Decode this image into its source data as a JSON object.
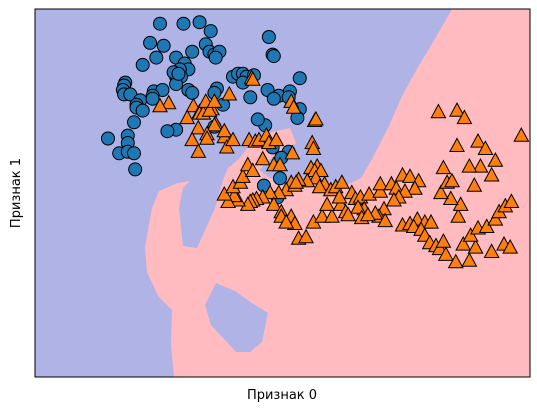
{
  "chart_data": {
    "type": "scatter",
    "title": "",
    "xlabel": "Признак 0",
    "ylabel": "Признак 1",
    "xlim": [
      -1.5,
      2.5
    ],
    "ylim": [
      -1.0,
      1.5
    ],
    "xticks_visible": false,
    "yticks_visible": false,
    "grid": false,
    "legend": "none",
    "colors": {
      "class0_marker": "#1f77b4",
      "class1_marker": "#ff7f0e",
      "class0_region": "#b0b3e6",
      "class1_region": "#ffbbc0",
      "marker_edge": "#000000"
    },
    "series": [
      {
        "marker": "circle",
        "points": [
          [
            -0.49,
            1.4
          ],
          [
            -0.3,
            1.4
          ],
          [
            -0.17,
            1.41
          ],
          [
            -0.08,
            1.35
          ],
          [
            -0.23,
            1.21
          ],
          [
            -0.12,
            1.26
          ],
          [
            -0.57,
            1.27
          ],
          [
            -0.46,
            1.25
          ],
          [
            -0.52,
            1.17
          ],
          [
            -0.36,
            1.17
          ],
          [
            -0.29,
            1.13
          ],
          [
            -0.09,
            1.21
          ],
          [
            -0.05,
            1.19
          ],
          [
            -0.01,
            1.21
          ],
          [
            -0.04,
            1.17
          ],
          [
            -0.63,
            1.12
          ],
          [
            -0.26,
            1.09
          ],
          [
            -0.33,
            1.09
          ],
          [
            -0.32,
            1.04
          ],
          [
            -0.36,
            1.04
          ],
          [
            -0.36,
            0.99
          ],
          [
            -0.38,
            1.07
          ],
          [
            -0.34,
            1.06
          ],
          [
            -0.77,
            1.0
          ],
          [
            -0.78,
            0.98
          ],
          [
            -0.79,
            0.95
          ],
          [
            -0.78,
            0.92
          ],
          [
            -0.73,
            0.92
          ],
          [
            -0.54,
            0.94
          ],
          [
            -0.47,
            0.95
          ],
          [
            -0.65,
            0.88
          ],
          [
            -0.68,
            0.85
          ],
          [
            -0.68,
            0.83
          ],
          [
            -0.55,
            0.91
          ],
          [
            -0.55,
            0.89
          ],
          [
            -0.26,
            0.95
          ],
          [
            -0.23,
            0.93
          ],
          [
            -0.03,
            0.96
          ],
          [
            -0.05,
            0.93
          ],
          [
            0.1,
            1.04
          ],
          [
            0.14,
            1.06
          ],
          [
            0.18,
            1.06
          ],
          [
            0.21,
            1.04
          ],
          [
            0.18,
            1.0
          ],
          [
            0.27,
            1.05
          ],
          [
            0.39,
            1.31
          ],
          [
            0.42,
            1.19
          ],
          [
            0.43,
            1.18
          ],
          [
            0.64,
            1.03
          ],
          [
            0.38,
            0.95
          ],
          [
            0.47,
            0.91
          ],
          [
            0.56,
            0.94
          ],
          [
            0.55,
            0.9
          ],
          [
            0.64,
            0.82
          ],
          [
            0.43,
            0.89
          ],
          [
            0.24,
            0.9
          ],
          [
            0.02,
            0.85
          ],
          [
            -0.05,
            0.7
          ],
          [
            -0.63,
            0.81
          ],
          [
            -0.7,
            0.73
          ],
          [
            -0.75,
            0.64
          ],
          [
            -0.75,
            0.59
          ],
          [
            -0.91,
            0.62
          ],
          [
            -0.82,
            0.52
          ],
          [
            -0.75,
            0.53
          ],
          [
            -0.7,
            0.52
          ],
          [
            -0.36,
            0.68
          ],
          [
            -0.43,
            0.67
          ],
          [
            0.55,
            0.53
          ],
          [
            0.49,
            0.49
          ],
          [
            0.48,
            0.35
          ],
          [
            0.35,
            0.3
          ],
          [
            0.46,
            0.22
          ],
          [
            0.42,
            0.56
          ],
          [
            0.36,
            0.71
          ],
          [
            0.3,
            0.75
          ],
          [
            0.62,
            0.76
          ],
          [
            -0.69,
            0.41
          ]
        ]
      },
      {
        "marker": "triangle",
        "points": [
          [
            0.25,
            1.03
          ],
          [
            0.26,
            1.02
          ],
          [
            0.07,
            0.92
          ],
          [
            -0.22,
            0.84
          ],
          [
            -0.07,
            0.82
          ],
          [
            -0.17,
            0.8
          ],
          [
            -0.17,
            0.79
          ],
          [
            -0.14,
            0.79
          ],
          [
            -0.09,
            0.81
          ],
          [
            -0.42,
            0.86
          ],
          [
            -0.49,
            0.84
          ],
          [
            -0.12,
            0.87
          ],
          [
            -0.05,
            0.87
          ],
          [
            -0.04,
            0.72
          ],
          [
            -0.05,
            0.71
          ],
          [
            -0.27,
            0.76
          ],
          [
            -0.18,
            0.69
          ],
          [
            -0.11,
            0.65
          ],
          [
            -0.11,
            0.62
          ],
          [
            -0.23,
            0.61
          ],
          [
            -0.18,
            0.53
          ],
          [
            0.03,
            0.63
          ],
          [
            0.03,
            0.67
          ],
          [
            0.05,
            0.56
          ],
          [
            0.1,
            0.61
          ],
          [
            0.23,
            0.61
          ],
          [
            0.28,
            0.6
          ],
          [
            0.31,
            0.61
          ],
          [
            0.37,
            0.64
          ],
          [
            0.39,
            0.59
          ],
          [
            0.45,
            0.61
          ],
          [
            0.57,
            0.87
          ],
          [
            0.59,
            0.83
          ],
          [
            0.58,
            0.52
          ],
          [
            0.76,
            0.74
          ],
          [
            0.77,
            0.75
          ],
          [
            0.74,
            0.59
          ],
          [
            0.75,
            0.55
          ],
          [
            0.78,
            0.43
          ],
          [
            0.73,
            0.42
          ],
          [
            0.76,
            0.4
          ],
          [
            0.81,
            0.4
          ],
          [
            0.77,
            0.35
          ],
          [
            0.84,
            0.31
          ],
          [
            0.8,
            0.29
          ],
          [
            0.7,
            0.33
          ],
          [
            0.63,
            0.34
          ],
          [
            0.57,
            0.32
          ],
          [
            0.53,
            0.27
          ],
          [
            0.47,
            0.25
          ],
          [
            0.4,
            0.25
          ],
          [
            0.34,
            0.22
          ],
          [
            0.29,
            0.21
          ],
          [
            0.26,
            0.2
          ],
          [
            0.24,
            0.19
          ],
          [
            0.22,
            0.17
          ],
          [
            0.14,
            0.2
          ],
          [
            0.11,
            0.23
          ],
          [
            0.06,
            0.19
          ],
          [
            0.03,
            0.24
          ],
          [
            0.1,
            0.29
          ],
          [
            0.16,
            0.32
          ],
          [
            0.18,
            0.36
          ],
          [
            0.22,
            0.44
          ],
          [
            0.26,
            0.4
          ],
          [
            0.34,
            0.48
          ],
          [
            0.43,
            0.44
          ],
          [
            0.48,
            0.44
          ],
          [
            0.6,
            0.3
          ],
          [
            0.61,
            0.32
          ],
          [
            0.43,
            0.17
          ],
          [
            0.49,
            0.12
          ],
          [
            0.49,
            0.09
          ],
          [
            0.57,
            0.09
          ],
          [
            0.6,
            0.04
          ],
          [
            0.53,
            0.05
          ],
          [
            0.63,
            -0.06
          ],
          [
            0.69,
            -0.05
          ],
          [
            0.75,
            0.05
          ],
          [
            0.82,
            0.09
          ],
          [
            0.9,
            0.09
          ],
          [
            0.86,
            0.17
          ],
          [
            0.89,
            0.27
          ],
          [
            0.93,
            0.29
          ],
          [
            0.97,
            0.17
          ],
          [
            1.01,
            0.12
          ],
          [
            0.96,
            0.22
          ],
          [
            0.98,
            0.32
          ],
          [
            1.06,
            0.25
          ],
          [
            1.09,
            0.21
          ],
          [
            1.13,
            0.22
          ],
          [
            1.2,
            0.24
          ],
          [
            1.29,
            0.26
          ],
          [
            1.29,
            0.31
          ],
          [
            1.38,
            0.31
          ],
          [
            1.42,
            0.28
          ],
          [
            1.47,
            0.37
          ],
          [
            1.53,
            0.36
          ],
          [
            1.6,
            0.33
          ],
          [
            1.57,
            0.28
          ],
          [
            1.49,
            0.26
          ],
          [
            1.44,
            0.22
          ],
          [
            1.4,
            0.2
          ],
          [
            1.32,
            0.14
          ],
          [
            1.28,
            0.09
          ],
          [
            1.25,
            0.11
          ],
          [
            1.16,
            0.14
          ],
          [
            1.11,
            0.15
          ],
          [
            1.03,
            0.1
          ],
          [
            1.14,
            0.08
          ],
          [
            1.19,
            0.1
          ],
          [
            1.33,
            0.06
          ],
          [
            1.47,
            0.03
          ],
          [
            1.53,
            0.04
          ],
          [
            1.59,
            0.07
          ],
          [
            1.65,
            0.05
          ],
          [
            1.7,
            0.05
          ],
          [
            1.56,
            0.02
          ],
          [
            1.62,
            0.0
          ],
          [
            1.65,
            -0.04
          ],
          [
            1.69,
            -0.09
          ],
          [
            1.74,
            -0.11
          ],
          [
            1.77,
            -0.13
          ],
          [
            1.82,
            -0.17
          ],
          [
            1.9,
            -0.22
          ],
          [
            2.01,
            -0.21
          ],
          [
            2.19,
            -0.15
          ],
          [
            2.29,
            -0.1
          ],
          [
            2.34,
            -0.12
          ],
          [
            2.06,
            -0.12
          ],
          [
            1.96,
            -0.1
          ],
          [
            1.8,
            -0.08
          ],
          [
            2.02,
            -0.04
          ],
          [
            2.08,
            0.01
          ],
          [
            2.15,
            0.02
          ],
          [
            2.22,
            0.07
          ],
          [
            2.25,
            0.12
          ],
          [
            2.3,
            0.16
          ],
          [
            2.35,
            0.19
          ],
          [
            1.92,
            0.09
          ],
          [
            1.94,
            0.17
          ],
          [
            1.86,
            0.21
          ],
          [
            1.78,
            0.25
          ],
          [
            1.83,
            0.32
          ],
          [
            2.05,
            0.3
          ],
          [
            2.1,
            0.43
          ],
          [
            2.01,
            0.43
          ],
          [
            1.8,
            0.42
          ],
          [
            1.87,
            0.33
          ],
          [
            1.91,
            0.57
          ],
          [
            2.08,
            0.6
          ],
          [
            2.14,
            0.55
          ],
          [
            2.22,
            0.47
          ],
          [
            2.19,
            0.37
          ],
          [
            2.43,
            0.64
          ],
          [
            1.91,
            0.81
          ],
          [
            1.76,
            0.8
          ],
          [
            1.97,
            0.76
          ]
        ]
      }
    ]
  }
}
